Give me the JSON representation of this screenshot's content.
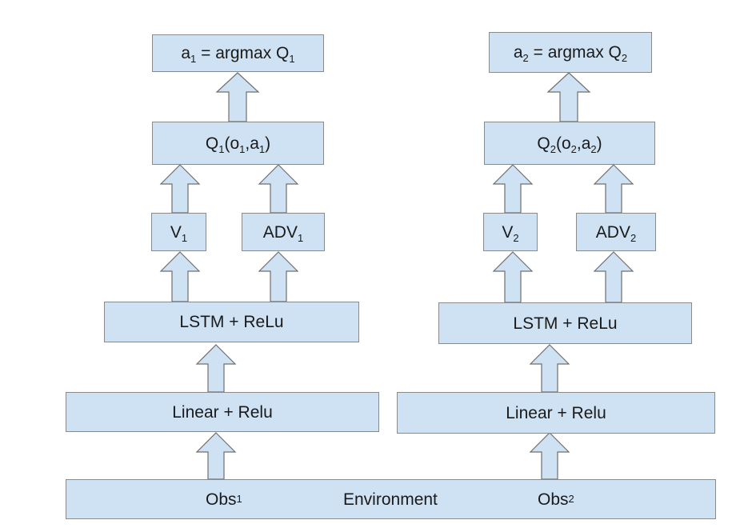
{
  "agent1": {
    "action": {
      "pre": "a",
      "sub1": "1",
      "mid": " = argmax Q",
      "sub2": "1"
    },
    "q": {
      "a": "Q",
      "s1": "1",
      "b": "(o",
      "s2": "1",
      "c": ",a",
      "s3": "1",
      "d": ")"
    },
    "v": {
      "a": "V",
      "s1": "1"
    },
    "adv": {
      "a": "ADV",
      "s1": "1"
    },
    "lstm": "LSTM + ReLu",
    "linear": "Linear + Relu"
  },
  "agent2": {
    "action": {
      "pre": "a",
      "sub1": "2",
      "mid": " = argmax Q",
      "sub2": "2"
    },
    "q": {
      "a": "Q",
      "s1": "2",
      "b": "(o",
      "s2": "2",
      "c": ",a",
      "s3": "2",
      "d": ")"
    },
    "v": {
      "a": "V",
      "s1": "2"
    },
    "adv": {
      "a": "ADV",
      "s1": "2"
    },
    "lstm": "LSTM + ReLu",
    "linear": "Linear + Relu"
  },
  "environment": {
    "obs1": {
      "a": "Obs",
      "s1": "1"
    },
    "label": "Environment",
    "obs2": {
      "a": "Obs",
      "s1": "2"
    }
  },
  "colors": {
    "box_fill": "#cfe2f3",
    "box_border": "#8a8a8a",
    "arrow_stroke": "#6f6f6f",
    "text": "#1a1a1a"
  }
}
